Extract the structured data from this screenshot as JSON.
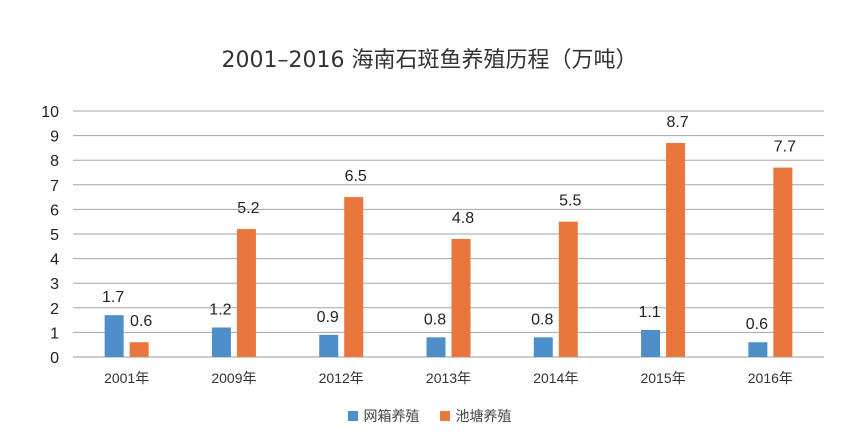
{
  "chart_data": {
    "type": "bar",
    "title": "2001–2016 海南石斑鱼养殖历程（万吨）",
    "categories": [
      "2001年",
      "2009年",
      "2012年",
      "2013年",
      "2014年",
      "2015年",
      "2016年"
    ],
    "series": [
      {
        "name": "网箱养殖",
        "color": "#4e8fc9",
        "values": [
          1.7,
          1.2,
          0.9,
          0.8,
          0.8,
          1.1,
          0.6
        ],
        "labels": [
          "1.7",
          "1.2",
          "0.9",
          "0.8",
          "0.8",
          "1.1",
          "0.6"
        ]
      },
      {
        "name": "池塘养殖",
        "color": "#e8763d",
        "values": [
          0.6,
          5.2,
          6.5,
          4.8,
          5.5,
          8.7,
          7.7
        ],
        "labels": [
          "0.6",
          "5.2",
          "6.5",
          "4.8",
          "5.5",
          "8.7",
          "7.7"
        ]
      }
    ],
    "ylim": [
      0,
      10
    ],
    "yticks": [
      "0",
      "1",
      "2",
      "3",
      "4",
      "5",
      "6",
      "7",
      "8",
      "9",
      "10"
    ],
    "xlabel": "",
    "ylabel": "",
    "grid": true,
    "legend": "bottom-center"
  }
}
